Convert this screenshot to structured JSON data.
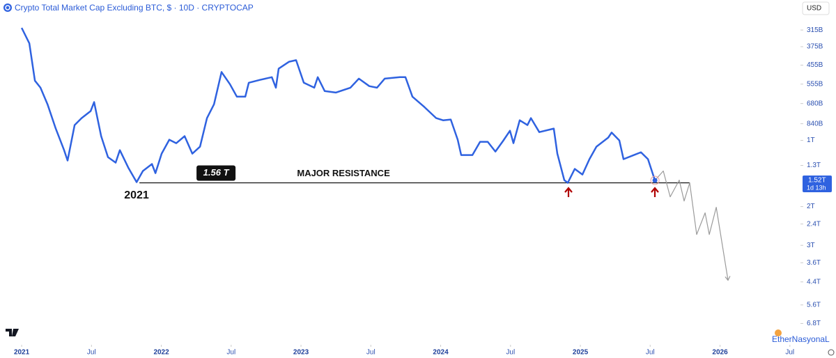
{
  "chart_data": {
    "type": "line",
    "title": "Crypto Total Market Cap Excluding BTC, $ · 10D · CRYPTOCAP",
    "log": true,
    "inverted": true,
    "grid": false,
    "xlim": [
      2020.845,
      2026.556
    ],
    "ylim": [
      230,
      7900
    ],
    "xticks": [
      {
        "value": 2021,
        "label": "2021"
      },
      {
        "value": 2021.5,
        "label": "Jul"
      },
      {
        "value": 2022,
        "label": "2022"
      },
      {
        "value": 2022.5,
        "label": "Jul"
      },
      {
        "value": 2023,
        "label": "2023"
      },
      {
        "value": 2023.5,
        "label": "Jul"
      },
      {
        "value": 2024,
        "label": "2024"
      },
      {
        "value": 2024.5,
        "label": "Jul"
      },
      {
        "value": 2025,
        "label": "2025"
      },
      {
        "value": 2025.5,
        "label": "Jul"
      },
      {
        "value": 2026,
        "label": "2026"
      },
      {
        "value": 2026.5,
        "label": "Jul"
      }
    ],
    "yticks": [
      {
        "value": 315,
        "label": "315B"
      },
      {
        "value": 375,
        "label": "375B"
      },
      {
        "value": 455,
        "label": "455B"
      },
      {
        "value": 555,
        "label": "555B"
      },
      {
        "value": 680,
        "label": "680B"
      },
      {
        "value": 840,
        "label": "840B"
      },
      {
        "value": 1000,
        "label": "1T"
      },
      {
        "value": 1300,
        "label": "1.3T"
      },
      {
        "value": 2000,
        "label": "2T"
      },
      {
        "value": 2400,
        "label": "2.4T"
      },
      {
        "value": 3000,
        "label": "3T"
      },
      {
        "value": 3600,
        "label": "3.6T"
      },
      {
        "value": 4400,
        "label": "4.4T"
      },
      {
        "value": 5600,
        "label": "5.6T"
      },
      {
        "value": 6800,
        "label": "6.8T"
      }
    ],
    "series": [
      {
        "color": "#2f62e0",
        "x": [
          2021.0,
          2021.055,
          2021.095,
          2021.135,
          2021.185,
          2021.244,
          2021.304,
          2021.329,
          2021.379,
          2021.429,
          2021.494,
          2021.519,
          2021.569,
          2021.618,
          2021.673,
          2021.703,
          2021.763,
          2021.823,
          2021.868,
          2021.933,
          2021.958,
          2022.002,
          2022.057,
          2022.107,
          2022.167,
          2022.222,
          2022.277,
          2022.327,
          2022.377,
          2022.431,
          2022.491,
          2022.541,
          2022.601,
          2022.626,
          2022.706,
          2022.791,
          2022.82,
          2022.84,
          2022.915,
          2022.965,
          2023.02,
          2023.095,
          2023.12,
          2023.17,
          2023.249,
          2023.354,
          2023.414,
          2023.489,
          2023.544,
          2023.599,
          2023.708,
          2023.748,
          2023.798,
          2023.883,
          2023.968,
          2024.017,
          2024.072,
          2024.122,
          2024.147,
          2024.227,
          2024.282,
          2024.337,
          2024.392,
          2024.446,
          2024.496,
          2024.521,
          2024.566,
          2024.621,
          2024.646,
          2024.706,
          2024.81,
          2024.835,
          2024.885,
          2024.91,
          2024.96,
          2025.015,
          2025.065,
          2025.115,
          2025.2,
          2025.224,
          2025.279,
          2025.309,
          2025.384,
          2025.434,
          2025.484,
          2025.534
        ],
        "values": [
          308,
          362,
          535,
          576,
          685,
          884,
          1108,
          1235,
          852,
          792,
          736,
          670,
          957,
          1192,
          1262,
          1108,
          1329,
          1548,
          1378,
          1281,
          1409,
          1149,
          993,
          1030,
          957,
          1149,
          1068,
          792,
          685,
          489,
          555,
          633,
          633,
          547,
          531,
          516,
          576,
          472,
          439,
          432,
          547,
          576,
          516,
          597,
          606,
          576,
          524,
          567,
          576,
          524,
          516,
          516,
          633,
          705,
          792,
          810,
          804,
          993,
          1166,
          1166,
          1015,
          1015,
          1124,
          1007,
          904,
          1030,
          810,
          852,
          792,
          917,
          884,
          1149,
          1516,
          1560,
          1348,
          1430,
          1217,
          1068,
          971,
          921,
          1000,
          1217,
          1166,
          1132,
          1217,
          1520
        ]
      },
      {
        "color": "#9a9a9a",
        "x": [
          2025.534,
          2025.594,
          2025.643,
          2025.708,
          2025.743,
          2025.783,
          2025.833,
          2025.893,
          2025.923,
          2025.973,
          2026.057
        ],
        "values": [
          1520,
          1378,
          1806,
          1516,
          1887,
          1560,
          2680,
          2136,
          2680,
          2015,
          4325
        ]
      }
    ],
    "resistance": {
      "value": 1560,
      "label": "1.56 T",
      "text": "MAJOR RESISTANCE",
      "x": [
        2021.843,
        2025.783
      ]
    },
    "low_label": "2021",
    "last_price": {
      "value": 1520,
      "label": "1.52T",
      "countdown": "1d 13h"
    }
  },
  "ui": {
    "currency": "USD",
    "watermark": "EtherNasyonaL"
  }
}
